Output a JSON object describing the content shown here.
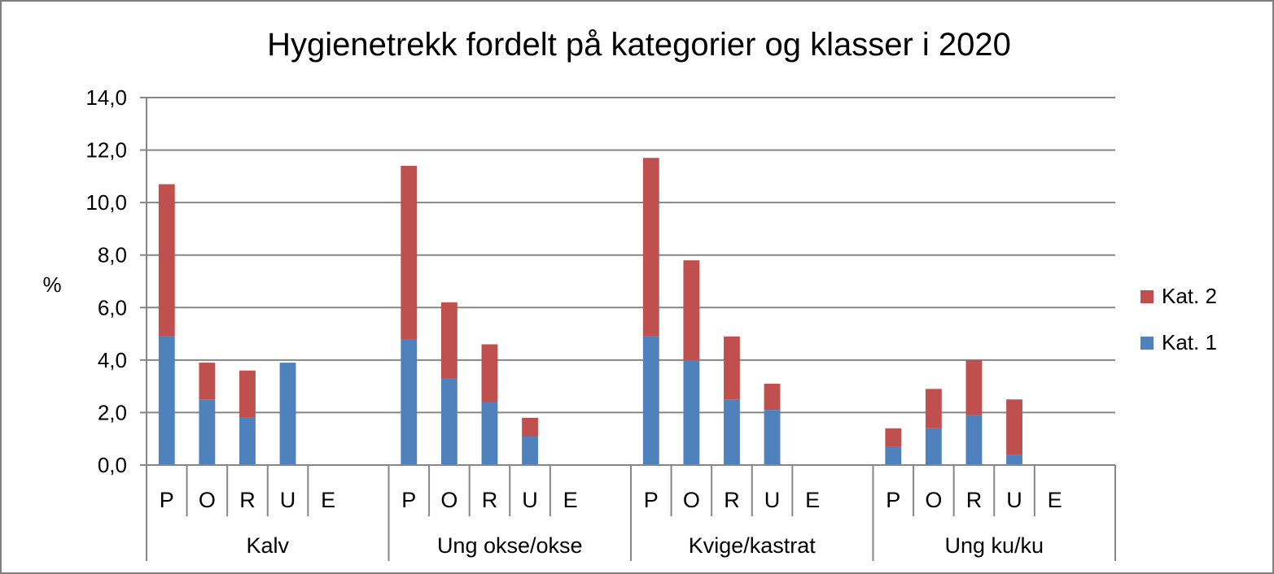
{
  "chart_data": {
    "type": "bar",
    "stacked": true,
    "title": "Hygienetrekk fordelt på kategorier og klasser i 2020",
    "ylabel": "%",
    "ylim": [
      0,
      14
    ],
    "yticks": [
      "0,0",
      "2,0",
      "4,0",
      "6,0",
      "8,0",
      "10,0",
      "12,0",
      "14,0"
    ],
    "grid": true,
    "legend_position": "right",
    "groups": [
      "Kalv",
      "Ung okse/okse",
      "Kvige/kastrat",
      "Ung ku/ku"
    ],
    "classes": [
      "P",
      "O",
      "R",
      "U",
      "E"
    ],
    "series": [
      {
        "name": "Kat. 1",
        "color": "#4f81bd",
        "values": [
          [
            4.9,
            2.5,
            1.8,
            3.9,
            0
          ],
          [
            4.8,
            3.3,
            2.4,
            1.1,
            0
          ],
          [
            4.9,
            4.0,
            2.5,
            2.1,
            0
          ],
          [
            0.7,
            1.4,
            1.9,
            0.4,
            0
          ]
        ]
      },
      {
        "name": "Kat. 2",
        "color": "#c0504d",
        "values": [
          [
            5.8,
            1.4,
            1.8,
            0,
            0
          ],
          [
            6.6,
            2.9,
            2.2,
            0.7,
            0
          ],
          [
            6.8,
            3.8,
            2.4,
            1.0,
            0
          ],
          [
            0.7,
            1.5,
            2.1,
            2.1,
            0
          ]
        ]
      }
    ]
  }
}
